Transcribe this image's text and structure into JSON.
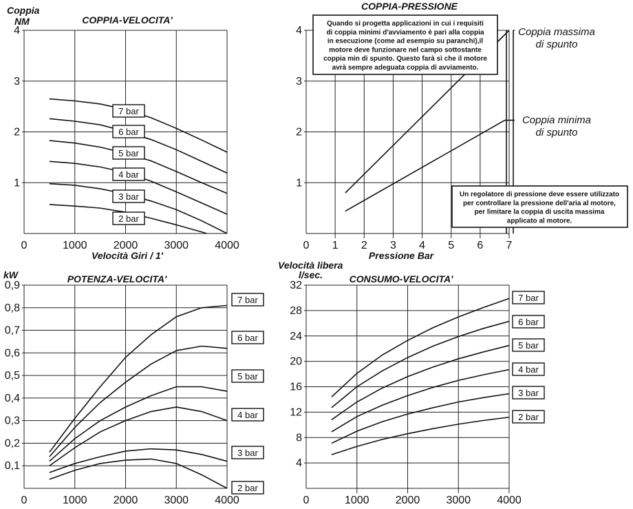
{
  "chart_data": [
    {
      "type": "line",
      "title": "COPPIA-VELOCITA'",
      "ylabel": "Coppia",
      "ylabel2": "NM",
      "xlabel": "Velocità Giri / 1'",
      "xlim": [
        0,
        4000
      ],
      "ylim": [
        0,
        4
      ],
      "x_ticks": [
        "0",
        "1000",
        "2000",
        "3000",
        "4000"
      ],
      "y_ticks": [
        "1",
        "2",
        "3",
        "4"
      ],
      "grid": true,
      "x": [
        500,
        1000,
        1500,
        2000,
        2500,
        3000,
        3500,
        4000
      ],
      "series": [
        {
          "name": "2 bar",
          "values": [
            0.57,
            0.54,
            0.5,
            0.42,
            0.3,
            0.17,
            0.03,
            null
          ]
        },
        {
          "name": "3 bar",
          "values": [
            0.98,
            0.95,
            0.88,
            0.78,
            0.64,
            0.47,
            0.25,
            0.0
          ]
        },
        {
          "name": "4 bar",
          "values": [
            1.42,
            1.38,
            1.31,
            1.2,
            1.03,
            0.82,
            0.6,
            0.38
          ]
        },
        {
          "name": "5 bar",
          "values": [
            1.83,
            1.78,
            1.7,
            1.58,
            1.43,
            1.22,
            1.0,
            0.79
          ]
        },
        {
          "name": "6 bar",
          "values": [
            2.26,
            2.21,
            2.14,
            2.01,
            1.85,
            1.65,
            1.42,
            1.19
          ]
        },
        {
          "name": "7 bar",
          "values": [
            2.65,
            2.61,
            2.55,
            2.44,
            2.28,
            2.07,
            1.84,
            1.6
          ]
        }
      ]
    },
    {
      "type": "line",
      "title": "COPPIA-PRESSIONE",
      "xlabel": "Pressione Bar",
      "xlim": [
        0,
        7
      ],
      "ylim": [
        0,
        4
      ],
      "x_ticks": [
        "0",
        "1",
        "2",
        "3",
        "4",
        "5",
        "6",
        "7"
      ],
      "y_ticks": [
        "1",
        "2",
        "3",
        "4"
      ],
      "grid": true,
      "series": [
        {
          "name": "Coppia massima di spunto",
          "x": [
            1.35,
            7.0
          ],
          "values": [
            0.8,
            4.0
          ]
        },
        {
          "name": "Coppia minima di spunto",
          "x": [
            1.35,
            6.85
          ],
          "values": [
            0.44,
            2.23
          ]
        }
      ],
      "labels": {
        "max_line1": "Coppia massima",
        "max_line2": "di spunto",
        "min_line1": "Coppia minima",
        "min_line2": "di spunto"
      },
      "note_top": [
        "Quando si progetta applicazioni in cui i requisiti",
        "di coppia minimi d'avviamento è pari alla coppia",
        "in esecuzione (come ad esempio su paranchi),il",
        "motore deve funzionare nel campo sottostante",
        "coppia min di spunto. Questo farà sì che il motore",
        "avrà sempre adeguata coppia di avviamento."
      ],
      "note_bottom": [
        "Un regolatore di pressione deve essere utilizzato",
        "per controllare la pressione dell'aria al motore,",
        "per limitare la coppia di uscita massima",
        "applicato al motore."
      ]
    },
    {
      "type": "line",
      "title": "POTENZA-VELOCITA'",
      "ylabel": "kW",
      "xlim": [
        0,
        4000
      ],
      "ylim": [
        0,
        0.9
      ],
      "x_ticks": [
        "0",
        "1000",
        "2000",
        "3000",
        "4000"
      ],
      "y_ticks": [
        "0,1",
        "0,2",
        "0,3",
        "0,4",
        "0,5",
        "0,6",
        "0,7",
        "0,8",
        "0,9"
      ],
      "grid": true,
      "x": [
        500,
        1000,
        1500,
        2000,
        2500,
        3000,
        3500,
        4000
      ],
      "series": [
        {
          "name": "2 bar",
          "values": [
            0.04,
            0.08,
            0.11,
            0.125,
            0.13,
            0.11,
            0.06,
            0.0
          ]
        },
        {
          "name": "3 bar",
          "values": [
            0.07,
            0.11,
            0.14,
            0.165,
            0.175,
            0.17,
            0.15,
            0.12
          ]
        },
        {
          "name": "4 bar",
          "values": [
            0.1,
            0.18,
            0.25,
            0.3,
            0.34,
            0.36,
            0.34,
            0.3
          ]
        },
        {
          "name": "5 bar",
          "values": [
            0.12,
            0.22,
            0.3,
            0.36,
            0.41,
            0.45,
            0.45,
            0.43
          ]
        },
        {
          "name": "6 bar",
          "values": [
            0.14,
            0.27,
            0.38,
            0.47,
            0.55,
            0.61,
            0.63,
            0.62
          ]
        },
        {
          "name": "7 bar",
          "values": [
            0.16,
            0.31,
            0.45,
            0.58,
            0.68,
            0.76,
            0.8,
            0.81
          ]
        }
      ]
    },
    {
      "type": "line",
      "title": "CONSUMO-VELOCITA'",
      "ylabel": "Velocità libera",
      "ylabel2": "l/sec.",
      "xlim": [
        0,
        4000
      ],
      "ylim": [
        0,
        32
      ],
      "x_ticks": [
        "0",
        "1000",
        "2000",
        "3000",
        "4000"
      ],
      "y_ticks": [
        "4",
        "8",
        "12",
        "16",
        "20",
        "24",
        "28",
        "32"
      ],
      "grid": true,
      "x": [
        500,
        1000,
        1500,
        2000,
        2500,
        3000,
        3500,
        4000
      ],
      "series": [
        {
          "name": "2 bar",
          "values": [
            5.3,
            6.6,
            7.7,
            8.6,
            9.4,
            10.1,
            10.7,
            11.2
          ]
        },
        {
          "name": "3 bar",
          "values": [
            7.1,
            9.0,
            10.5,
            11.7,
            12.7,
            13.6,
            14.3,
            14.9
          ]
        },
        {
          "name": "4 bar",
          "values": [
            8.9,
            11.3,
            13.1,
            14.6,
            15.9,
            17.0,
            17.9,
            18.7
          ]
        },
        {
          "name": "5 bar",
          "values": [
            10.8,
            13.6,
            15.8,
            17.6,
            19.1,
            20.4,
            21.5,
            22.5
          ]
        },
        {
          "name": "6 bar",
          "values": [
            12.7,
            16.0,
            18.5,
            20.6,
            22.4,
            23.9,
            25.2,
            26.3
          ]
        },
        {
          "name": "7 bar",
          "values": [
            14.4,
            18.1,
            21.0,
            23.3,
            25.3,
            27.0,
            28.5,
            29.9
          ]
        }
      ]
    }
  ]
}
